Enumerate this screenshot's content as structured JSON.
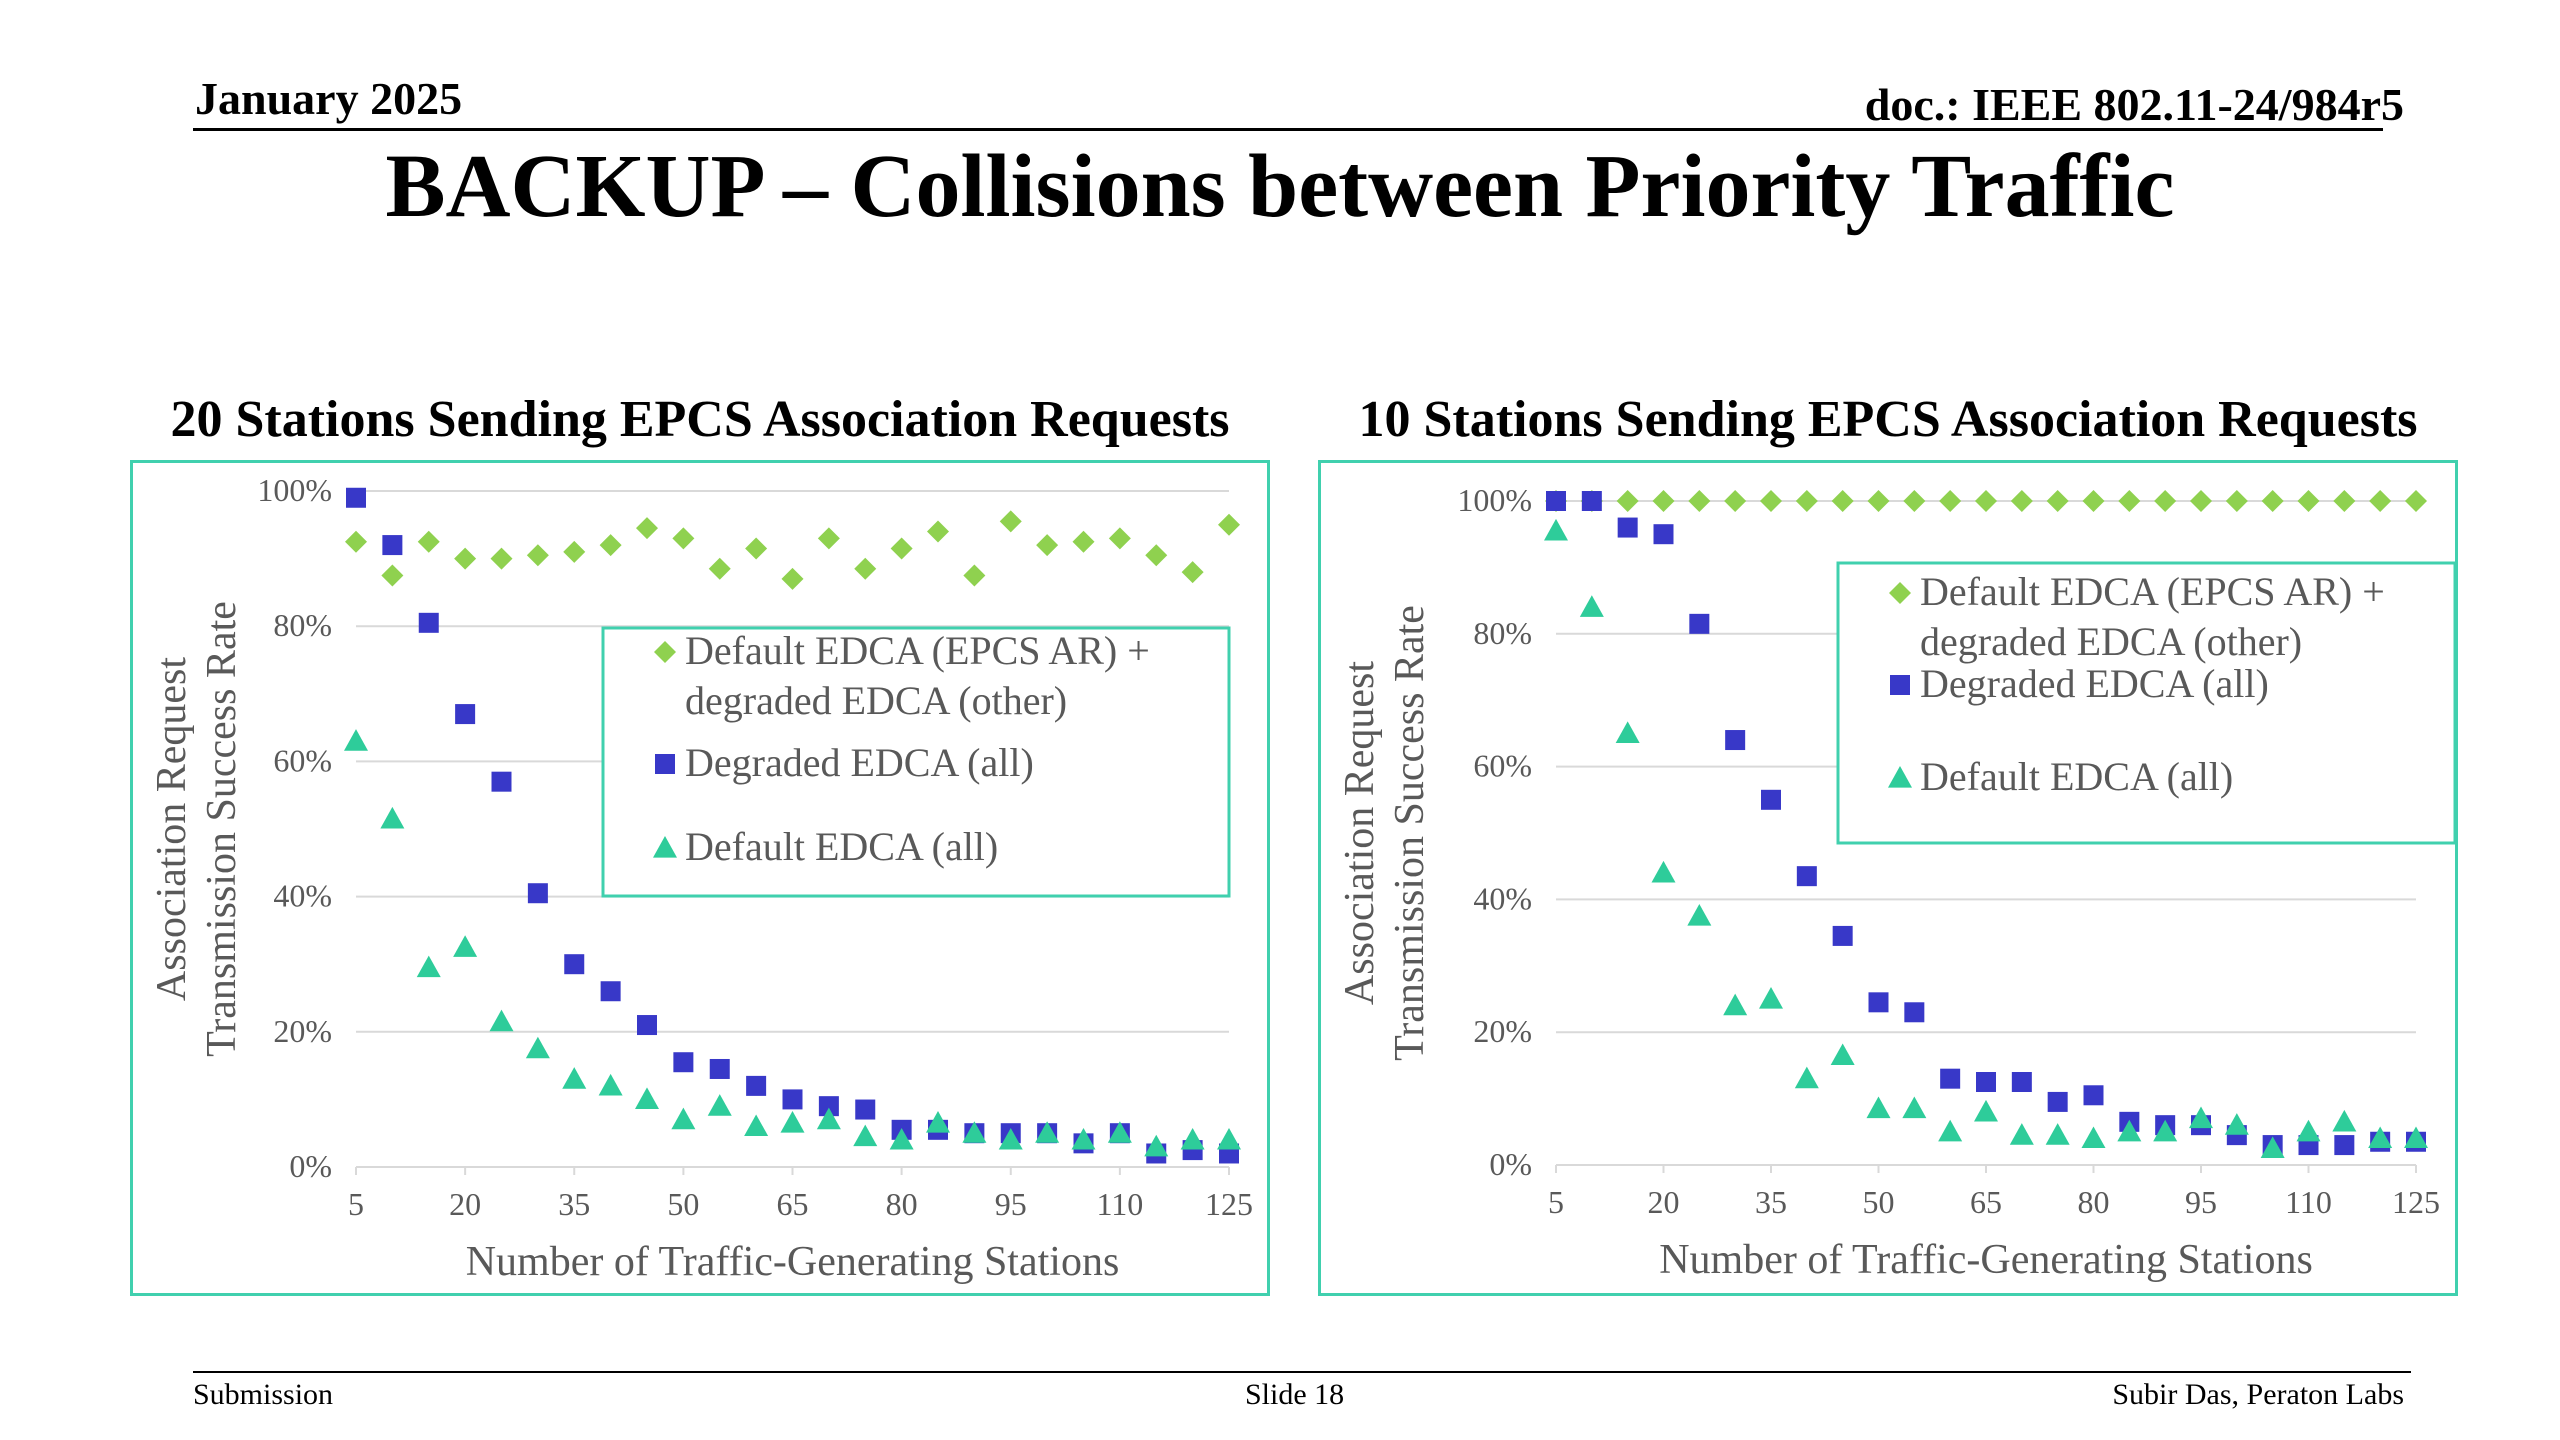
{
  "header": {
    "date": "January 2025",
    "doc_id": "doc.: IEEE 802.11-24/984r5",
    "title": "BACKUP – Collisions between Priority Traffic"
  },
  "footer": {
    "left": "Submission",
    "center": "Slide 18",
    "right": "Subir Das, Peraton Labs"
  },
  "colors": {
    "default_epcs": "#8fd14f",
    "degraded": "#3838c8",
    "default_edca": "#2ecc9a",
    "frame": "#40d0ae",
    "grid": "#d9d9d9",
    "axis_text": "#595959"
  },
  "chart_data": [
    {
      "type": "scatter",
      "title": "20 Stations Sending EPCS Association Requests",
      "xlabel": "Number of Traffic-Generating Stations",
      "ylabel": [
        "Association Request",
        "Transmission Success Rate"
      ],
      "xlim": [
        5,
        125
      ],
      "ylim": [
        0,
        100
      ],
      "x_ticks": [
        "5",
        "20",
        "35",
        "50",
        "65",
        "80",
        "95",
        "110",
        "125"
      ],
      "y_ticks": [
        "0%",
        "20%",
        "40%",
        "60%",
        "80%",
        "100%"
      ],
      "legend_position": "middle-right",
      "x": [
        5,
        10,
        15,
        20,
        25,
        30,
        35,
        40,
        45,
        50,
        55,
        60,
        65,
        70,
        75,
        80,
        85,
        90,
        95,
        100,
        105,
        110,
        115,
        120,
        125
      ],
      "series": [
        {
          "name": "Default EDCA (EPCS AR) + degraded EDCA (other)",
          "marker": "diamond",
          "values": [
            92.5,
            87.5,
            92.5,
            90,
            90,
            90.5,
            91,
            92,
            94.5,
            93,
            88.5,
            91.5,
            87,
            93,
            88.5,
            91.5,
            94,
            87.5,
            95.5,
            92,
            92.5,
            93,
            90.5,
            88,
            95
          ]
        },
        {
          "name": "Degraded EDCA (all)",
          "marker": "square",
          "values": [
            99,
            92,
            80.5,
            67,
            57,
            40.5,
            30,
            26,
            21,
            15.5,
            14.5,
            12,
            10,
            9,
            8.5,
            5.5,
            5.5,
            5,
            5,
            5,
            3.5,
            5,
            2,
            2.5,
            2
          ]
        },
        {
          "name": "Default EDCA (all)",
          "marker": "triangle",
          "values": [
            63,
            51.5,
            29.5,
            32.5,
            21.5,
            17.5,
            13,
            12,
            10,
            7,
            9,
            6,
            6.5,
            7,
            4.5,
            4,
            6.5,
            5,
            4,
            5,
            4,
            5,
            3,
            4,
            4
          ]
        }
      ]
    },
    {
      "type": "scatter",
      "title": "10 Stations Sending EPCS Association Requests",
      "xlabel": "Number of Traffic-Generating Stations",
      "ylabel": [
        "Association Request",
        "Transmission Success Rate"
      ],
      "xlim": [
        5,
        125
      ],
      "ylim": [
        0,
        100
      ],
      "x_ticks": [
        "5",
        "20",
        "35",
        "50",
        "65",
        "80",
        "95",
        "110",
        "125"
      ],
      "y_ticks": [
        "0%",
        "20%",
        "40%",
        "60%",
        "80%",
        "100%"
      ],
      "legend_position": "top-right",
      "x": [
        5,
        10,
        15,
        20,
        25,
        30,
        35,
        40,
        45,
        50,
        55,
        60,
        65,
        70,
        75,
        80,
        85,
        90,
        95,
        100,
        105,
        110,
        115,
        120,
        125
      ],
      "series": [
        {
          "name": "Default EDCA (EPCS AR) + degraded EDCA (other)",
          "marker": "diamond",
          "values": [
            100,
            100,
            100,
            100,
            100,
            100,
            100,
            100,
            100,
            100,
            100,
            100,
            100,
            100,
            100,
            100,
            100,
            100,
            100,
            100,
            100,
            100,
            100,
            100,
            100
          ]
        },
        {
          "name": "Degraded EDCA (all)",
          "marker": "square",
          "values": [
            100,
            100,
            96,
            95,
            81.5,
            64,
            55,
            43.5,
            34.5,
            24.5,
            23,
            13,
            12.5,
            12.5,
            9.5,
            10.5,
            6.5,
            6,
            6,
            4.5,
            3,
            3,
            3,
            3.5,
            3.5
          ]
        },
        {
          "name": "Default EDCA (all)",
          "marker": "triangle",
          "values": [
            95.5,
            84,
            65,
            44,
            37.5,
            24,
            25,
            13,
            16.5,
            8.5,
            8.5,
            5,
            8,
            4.5,
            4.5,
            4,
            5,
            5,
            7,
            6,
            2.5,
            5,
            6.5,
            4,
            4
          ]
        }
      ]
    }
  ]
}
